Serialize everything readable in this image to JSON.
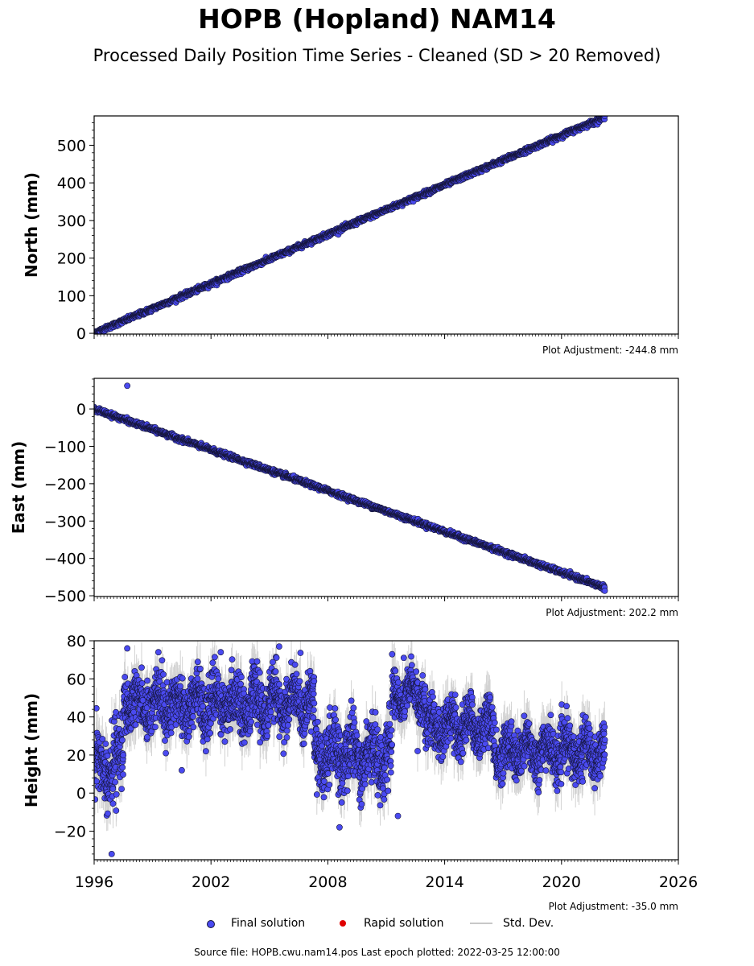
{
  "title": "HOPB (Hopland) NAM14",
  "subtitle": "Processed Daily Position Time Series - Cleaned (SD > 20 Removed)",
  "footer": "Source file: HOPB.cwu.nam14.pos  Last epoch plotted: 2022-03-25 12:00:00",
  "legend": {
    "final": "Final solution",
    "rapid": "Rapid solution",
    "std": "Std. Dev."
  },
  "colors": {
    "final": "#4a4af0",
    "rapid": "#e00000",
    "std": "#c8c8c8",
    "edge": "#15153a"
  },
  "chart_data": [
    {
      "type": "scatter",
      "ylabel": "North (mm)",
      "xlim": [
        1996,
        2026
      ],
      "ylim": [
        -2,
        578
      ],
      "yticks": [
        0,
        100,
        200,
        300,
        400,
        500
      ],
      "xticks": [
        1996,
        2002,
        2008,
        2014,
        2020,
        2026
      ],
      "show_xtick_labels": false,
      "adjustment": "Plot Adjustment: -244.8 mm",
      "trend": {
        "x": [
          1996.0,
          2022.23
        ],
        "y": [
          0,
          575
        ]
      },
      "noise_mm": 3
    },
    {
      "type": "scatter",
      "ylabel": "East (mm)",
      "xlim": [
        1996,
        2026
      ],
      "ylim": [
        -502,
        82
      ],
      "yticks": [
        -500,
        -400,
        -300,
        -200,
        -100,
        0
      ],
      "xticks": [
        1996,
        2002,
        2008,
        2014,
        2020,
        2026
      ],
      "show_xtick_labels": false,
      "adjustment": "Plot Adjustment: 202.2 mm",
      "trend": {
        "x": [
          1996.0,
          2022.23
        ],
        "y": [
          0,
          -478
        ]
      },
      "noise_mm": 3,
      "outliers": [
        {
          "x": 1997.7,
          "y": 62
        }
      ]
    },
    {
      "type": "scatter",
      "ylabel": "Height (mm)",
      "xlim": [
        1996,
        2026
      ],
      "ylim": [
        -35,
        80
      ],
      "yticks": [
        -20,
        0,
        20,
        40,
        60,
        80
      ],
      "xticks": [
        1996,
        2002,
        2008,
        2014,
        2020,
        2026
      ],
      "show_xtick_labels": true,
      "adjustment": "Plot Adjustment: -35.0 mm",
      "segments": [
        {
          "x0": 1996.0,
          "x1": 1997.0,
          "mean": 12,
          "spread": 12
        },
        {
          "x0": 1997.0,
          "x1": 1997.5,
          "mean": 18,
          "spread": 14
        },
        {
          "x0": 1997.5,
          "x1": 2007.3,
          "mean": 47,
          "spread": 10
        },
        {
          "x0": 2007.3,
          "x1": 2011.3,
          "mean": 20,
          "spread": 12
        },
        {
          "x0": 2011.3,
          "x1": 2013.0,
          "mean": 52,
          "spread": 8
        },
        {
          "x0": 2013.0,
          "x1": 2016.5,
          "mean": 35,
          "spread": 9
        },
        {
          "x0": 2016.5,
          "x1": 2022.23,
          "mean": 22,
          "spread": 9
        }
      ],
      "outliers": [
        {
          "x": 1996.9,
          "y": -32
        },
        {
          "x": 1997.7,
          "y": 76
        },
        {
          "x": 1999.3,
          "y": 74
        },
        {
          "x": 2002.5,
          "y": 74
        },
        {
          "x": 2005.5,
          "y": 77
        },
        {
          "x": 2011.9,
          "y": 71
        },
        {
          "x": 2008.6,
          "y": -18
        },
        {
          "x": 2011.6,
          "y": -12
        },
        {
          "x": 2000.5,
          "y": 12
        }
      ]
    }
  ]
}
